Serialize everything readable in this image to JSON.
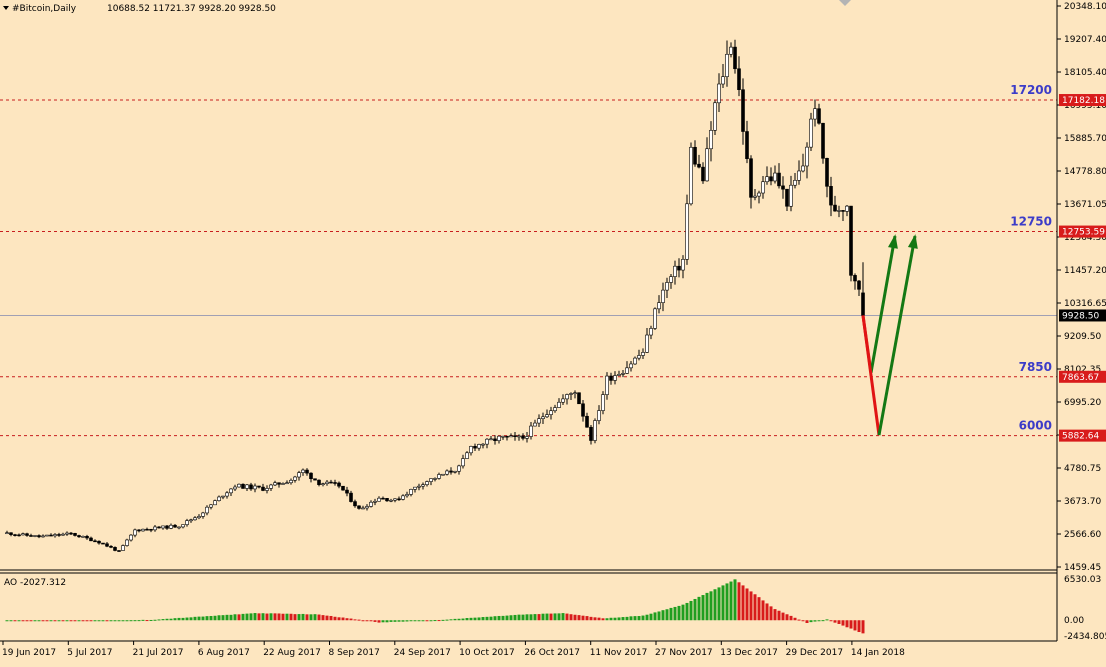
{
  "window": {
    "symbol_header": "#Bitcoin,Daily",
    "ohlc": "10688.52 11721.37 9928.20 9928.50"
  },
  "colors": {
    "background": "#fde6c0",
    "bull_candle": "#ffffff",
    "bear_candle": "#000000",
    "ao_up": "#1f9e1f",
    "ao_down": "#d81b1b",
    "level_line": "#c81e1e",
    "level_label": "#3c3cc8",
    "price_tag": "#d81b1b",
    "current_price_tag": "#000000",
    "arrow_down": "#e01414",
    "arrow_up": "#147814"
  },
  "chart_data": [
    {
      "type": "candlestick",
      "title": "#Bitcoin,Daily",
      "timeframe": "Daily",
      "last_ohlc": {
        "open": 10688.52,
        "high": 11721.37,
        "low": 9928.2,
        "close": 9928.5
      },
      "ylim": [
        1459.45,
        20348.1
      ],
      "y_ticks": [
        "20348.10",
        "19207.40",
        "18105.40",
        "16995.10",
        "15885.70",
        "14778.80",
        "13671.05",
        "12564.30",
        "11457.20",
        "10316.65",
        "9209.50",
        "8102.35",
        "6995.20",
        "5888.00",
        "4780.75",
        "3673.70",
        "2566.60",
        "1459.45"
      ],
      "x_ticks": [
        "19 Jun 2017",
        "5 Jul 2017",
        "21 Jul 2017",
        "6 Aug 2017",
        "22 Aug 2017",
        "8 Sep 2017",
        "24 Sep 2017",
        "10 Oct 2017",
        "26 Oct 2017",
        "11 Nov 2017",
        "27 Nov 2017",
        "13 Dec 2017",
        "29 Dec 2017",
        "14 Jan 2018"
      ],
      "x_start": "2017-06-19",
      "price_path": [
        [
          "2017-06-19",
          2600
        ],
        [
          "2017-06-27",
          2480
        ],
        [
          "2017-07-05",
          2580
        ],
        [
          "2017-07-12",
          2300
        ],
        [
          "2017-07-17",
          1980
        ],
        [
          "2017-07-21",
          2700
        ],
        [
          "2017-08-01",
          2850
        ],
        [
          "2017-08-06",
          3200
        ],
        [
          "2017-08-12",
          3900
        ],
        [
          "2017-08-15",
          4200
        ],
        [
          "2017-08-22",
          4100
        ],
        [
          "2017-08-29",
          4400
        ],
        [
          "2017-09-01",
          4700
        ],
        [
          "2017-09-05",
          4300
        ],
        [
          "2017-09-10",
          4200
        ],
        [
          "2017-09-15",
          3400
        ],
        [
          "2017-09-20",
          3800
        ],
        [
          "2017-09-24",
          3700
        ],
        [
          "2017-10-01",
          4300
        ],
        [
          "2017-10-10",
          4800
        ],
        [
          "2017-10-13",
          5500
        ],
        [
          "2017-10-20",
          5800
        ],
        [
          "2017-10-26",
          5800
        ],
        [
          "2017-11-01",
          6700
        ],
        [
          "2017-11-08",
          7400
        ],
        [
          "2017-11-12",
          5800
        ],
        [
          "2017-11-16",
          7800
        ],
        [
          "2017-11-20",
          8100
        ],
        [
          "2017-11-25",
          8700
        ],
        [
          "2017-11-29",
          10500
        ],
        [
          "2017-12-01",
          11000
        ],
        [
          "2017-12-05",
          11800
        ],
        [
          "2017-12-07",
          15500
        ],
        [
          "2017-12-10",
          14500
        ],
        [
          "2017-12-13",
          17000
        ],
        [
          "2017-12-17",
          19200
        ],
        [
          "2017-12-19",
          17500
        ],
        [
          "2017-12-22",
          13800
        ],
        [
          "2017-12-25",
          14500
        ],
        [
          "2017-12-28",
          14600
        ],
        [
          "2017-12-31",
          13800
        ],
        [
          "2018-01-04",
          15000
        ],
        [
          "2018-01-07",
          17100
        ],
        [
          "2018-01-09",
          15200
        ],
        [
          "2018-01-11",
          13500
        ],
        [
          "2018-01-14",
          13600
        ],
        [
          "2018-01-15",
          13700
        ],
        [
          "2018-01-16",
          11400
        ],
        [
          "2018-01-17",
          11200
        ],
        [
          "2018-01-18",
          10700
        ],
        [
          "2018-01-19",
          9928.5
        ]
      ],
      "levels": [
        {
          "label": "17200",
          "price_tag": "17182.18",
          "value": 17182.18
        },
        {
          "label": "12750",
          "price_tag": "12753.59",
          "value": 12753.59
        },
        {
          "label": "7850",
          "price_tag": "7863.67",
          "value": 7863.67
        },
        {
          "label": "6000",
          "price_tag": "5882.64",
          "value": 5882.64
        }
      ],
      "current_price": {
        "label": "9928.50",
        "value": 9928.5
      },
      "projections": [
        {
          "direction": "down",
          "from": [
            "2018-01-19",
            9928.5
          ],
          "to": [
            "2018-01-21",
            8000
          ]
        },
        {
          "direction": "up",
          "from": [
            "2018-01-21",
            8000
          ],
          "to": [
            "2018-01-27",
            12600
          ]
        },
        {
          "direction": "down",
          "from": [
            "2018-01-19",
            9928.5
          ],
          "to": [
            "2018-01-23",
            5900
          ]
        },
        {
          "direction": "up",
          "from": [
            "2018-01-23",
            5900
          ],
          "to": [
            "2018-02-01",
            12600
          ]
        }
      ]
    },
    {
      "type": "histogram",
      "title": "AO -2027.312",
      "indicator": "AO",
      "last_value": -2027.312,
      "ylim": [
        -2434.805,
        6530.03
      ],
      "y_ticks": [
        "6530.03",
        "0.00",
        "-2434.805"
      ],
      "ao_path": [
        [
          "2017-06-19",
          0
        ],
        [
          "2017-07-10",
          -120
        ],
        [
          "2017-07-25",
          60
        ],
        [
          "2017-08-20",
          1100
        ],
        [
          "2017-09-05",
          900
        ],
        [
          "2017-09-20",
          -350
        ],
        [
          "2017-10-05",
          30
        ],
        [
          "2017-10-25",
          850
        ],
        [
          "2017-11-05",
          1100
        ],
        [
          "2017-11-15",
          300
        ],
        [
          "2017-11-25",
          700
        ],
        [
          "2017-12-05",
          2400
        ],
        [
          "2017-12-18",
          6300
        ],
        [
          "2017-12-28",
          1700
        ],
        [
          "2018-01-05",
          -400
        ],
        [
          "2018-01-10",
          120
        ],
        [
          "2018-01-19",
          -2027.312
        ]
      ]
    }
  ]
}
